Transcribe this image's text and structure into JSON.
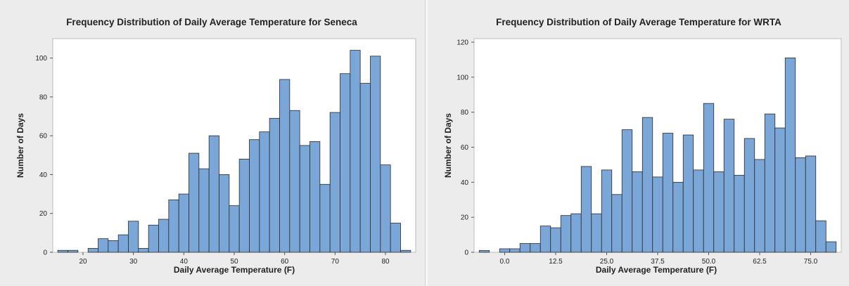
{
  "chart_data": [
    {
      "type": "bar",
      "title": "Frequency Distribution of Daily Average Temperature for Seneca",
      "xlabel": "Daily Average Temperature (F)",
      "ylabel": "Number of Days",
      "xlim": [
        14,
        86
      ],
      "ylim": [
        0,
        110
      ],
      "bin_width": 2,
      "xticks": [
        20,
        30,
        40,
        50,
        60,
        70,
        80
      ],
      "yticks": [
        0,
        20,
        40,
        60,
        80,
        100
      ],
      "bar_color": "#7aa6d8",
      "bins": [
        {
          "x": 16,
          "value": 1
        },
        {
          "x": 18,
          "value": 1
        },
        {
          "x": 20,
          "value": 0
        },
        {
          "x": 22,
          "value": 2
        },
        {
          "x": 24,
          "value": 7
        },
        {
          "x": 26,
          "value": 6
        },
        {
          "x": 28,
          "value": 9
        },
        {
          "x": 30,
          "value": 16
        },
        {
          "x": 32,
          "value": 2
        },
        {
          "x": 34,
          "value": 14
        },
        {
          "x": 36,
          "value": 17
        },
        {
          "x": 38,
          "value": 27
        },
        {
          "x": 40,
          "value": 30
        },
        {
          "x": 42,
          "value": 51
        },
        {
          "x": 44,
          "value": 43
        },
        {
          "x": 46,
          "value": 60
        },
        {
          "x": 48,
          "value": 40
        },
        {
          "x": 50,
          "value": 24
        },
        {
          "x": 52,
          "value": 48
        },
        {
          "x": 54,
          "value": 58
        },
        {
          "x": 56,
          "value": 62
        },
        {
          "x": 58,
          "value": 69
        },
        {
          "x": 60,
          "value": 89
        },
        {
          "x": 62,
          "value": 73
        },
        {
          "x": 64,
          "value": 55
        },
        {
          "x": 66,
          "value": 57
        },
        {
          "x": 68,
          "value": 35
        },
        {
          "x": 70,
          "value": 72
        },
        {
          "x": 72,
          "value": 92
        },
        {
          "x": 74,
          "value": 104
        },
        {
          "x": 76,
          "value": 87
        },
        {
          "x": 78,
          "value": 101
        },
        {
          "x": 80,
          "value": 45
        },
        {
          "x": 82,
          "value": 15
        },
        {
          "x": 84,
          "value": 1
        }
      ]
    },
    {
      "type": "bar",
      "title": "Frequency Distribution of Daily Average Temperature for WRTA",
      "xlabel": "Daily Average Temperature (F)",
      "ylabel": "Number of Days",
      "xlim": [
        -7.5,
        82.5
      ],
      "ylim": [
        0,
        122
      ],
      "bin_width": 2.5,
      "xticks": [
        0.0,
        12.5,
        25.0,
        37.5,
        50.0,
        62.5,
        75.0
      ],
      "xtick_labels": [
        "0.0",
        "12.5",
        "25.0",
        "37.5",
        "50.0",
        "62.5",
        "75.0"
      ],
      "yticks": [
        0,
        20,
        40,
        60,
        80,
        100,
        120
      ],
      "bar_color": "#7aa6d8",
      "bins": [
        {
          "x": -5.0,
          "value": 1
        },
        {
          "x": -2.5,
          "value": 0
        },
        {
          "x": 0.0,
          "value": 2
        },
        {
          "x": 2.5,
          "value": 2
        },
        {
          "x": 5.0,
          "value": 5
        },
        {
          "x": 7.5,
          "value": 5
        },
        {
          "x": 10.0,
          "value": 15
        },
        {
          "x": 12.5,
          "value": 14
        },
        {
          "x": 15.0,
          "value": 21
        },
        {
          "x": 17.5,
          "value": 22
        },
        {
          "x": 20.0,
          "value": 49
        },
        {
          "x": 22.5,
          "value": 22
        },
        {
          "x": 25.0,
          "value": 47
        },
        {
          "x": 27.5,
          "value": 33
        },
        {
          "x": 30.0,
          "value": 70
        },
        {
          "x": 32.5,
          "value": 46
        },
        {
          "x": 35.0,
          "value": 77
        },
        {
          "x": 37.5,
          "value": 43
        },
        {
          "x": 40.0,
          "value": 68
        },
        {
          "x": 42.5,
          "value": 40
        },
        {
          "x": 45.0,
          "value": 67
        },
        {
          "x": 47.5,
          "value": 47
        },
        {
          "x": 50.0,
          "value": 85
        },
        {
          "x": 52.5,
          "value": 46
        },
        {
          "x": 55.0,
          "value": 76
        },
        {
          "x": 57.5,
          "value": 44
        },
        {
          "x": 60.0,
          "value": 65
        },
        {
          "x": 62.5,
          "value": 53
        },
        {
          "x": 65.0,
          "value": 79
        },
        {
          "x": 67.5,
          "value": 71
        },
        {
          "x": 70.0,
          "value": 111
        },
        {
          "x": 72.5,
          "value": 54
        },
        {
          "x": 75.0,
          "value": 55
        },
        {
          "x": 77.5,
          "value": 18
        },
        {
          "x": 80.0,
          "value": 6
        }
      ]
    }
  ]
}
